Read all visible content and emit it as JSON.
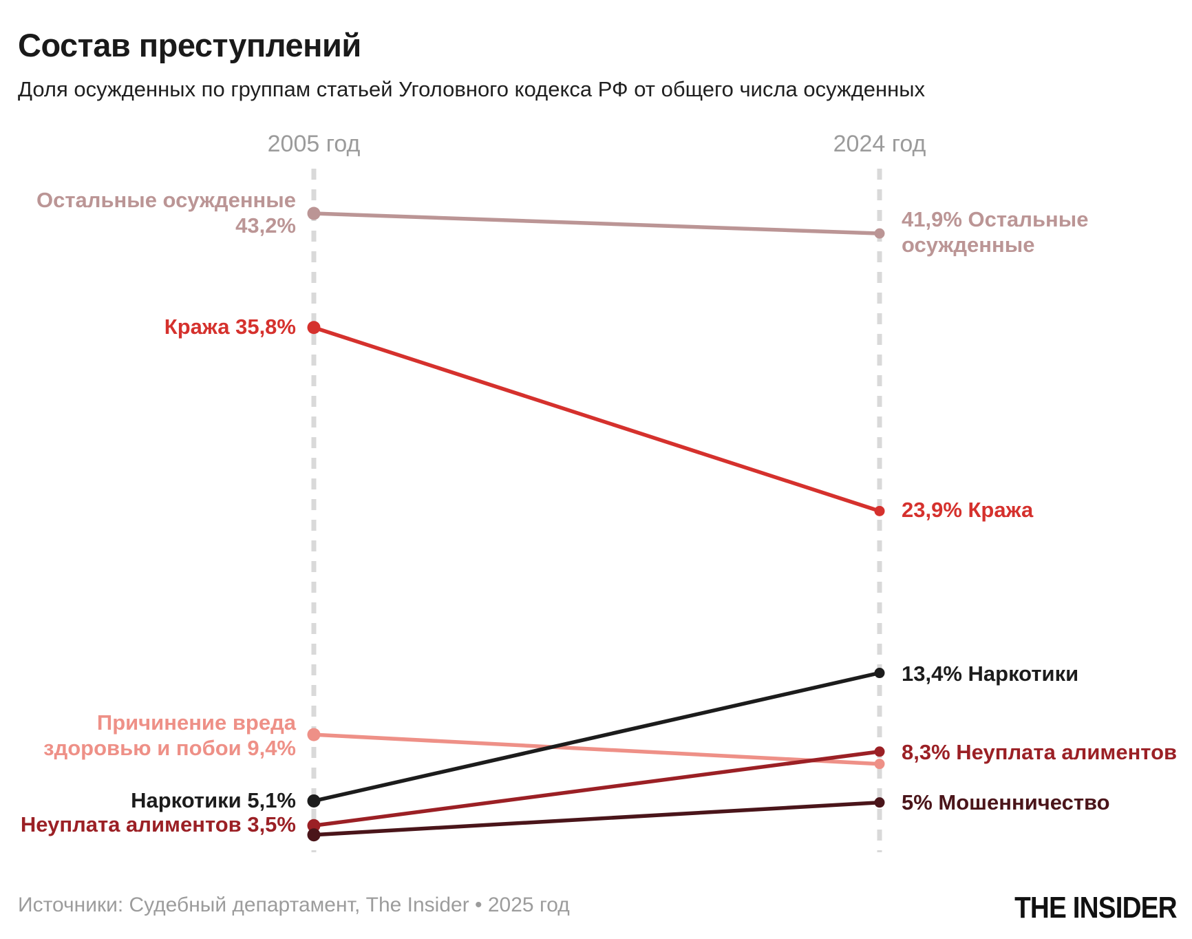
{
  "header": {
    "title": "Состав преступлений",
    "subtitle": "Доля осужденных по группам статьей Уголовного кодекса РФ от общего числа осужденных"
  },
  "columns": {
    "left": "2005 год",
    "right": "2024 год"
  },
  "footer": {
    "source": "Источники: Судебный департамент, The Insider • 2025 год",
    "logo": "THE INSIDER"
  },
  "chart_data": {
    "type": "line",
    "subtype": "slopegraph",
    "x": [
      "2005",
      "2024"
    ],
    "ylim": [
      0,
      45
    ],
    "grid": false,
    "axis_color": "#d9d9d9",
    "series": [
      {
        "name": "Остальные осужденные",
        "values": [
          43.2,
          41.9
        ],
        "color": "#bb9595",
        "left_label_lines": [
          "Остальные осужденные",
          "43,2%"
        ],
        "right_label_lines": [
          "41,9% Остальные",
          "осужденные"
        ]
      },
      {
        "name": "Кража",
        "values": [
          35.8,
          23.9
        ],
        "color": "#d5312d",
        "left_label_lines": [
          "Кража 35,8%"
        ],
        "right_label_lines": [
          "23,9% Кража"
        ]
      },
      {
        "name": "Причинение вреда здоровью и побои",
        "values": [
          9.4,
          7.5
        ],
        "color": "#ee9087",
        "left_label_lines": [
          "Причинение вреда",
          "здоровью и побои 9,4%"
        ],
        "right_label_lines": []
      },
      {
        "name": "Наркотики",
        "values": [
          5.1,
          13.4
        ],
        "color": "#1c1c1c",
        "left_label_lines": [
          "Наркотики 5,1%"
        ],
        "right_label_lines": [
          "13,4% Наркотики"
        ]
      },
      {
        "name": "Неуплата алиментов",
        "values": [
          3.5,
          8.3
        ],
        "color": "#9b2025",
        "left_label_lines": [
          "Неуплата алиментов 3,5%"
        ],
        "right_label_lines": [
          "8,3% Неуплата алиментов"
        ]
      },
      {
        "name": "Мошенничество",
        "values": [
          2.9,
          5.0
        ],
        "color": "#4a151a",
        "left_label_lines": [],
        "right_label_lines": [
          "5% Мошенничество"
        ]
      }
    ]
  }
}
